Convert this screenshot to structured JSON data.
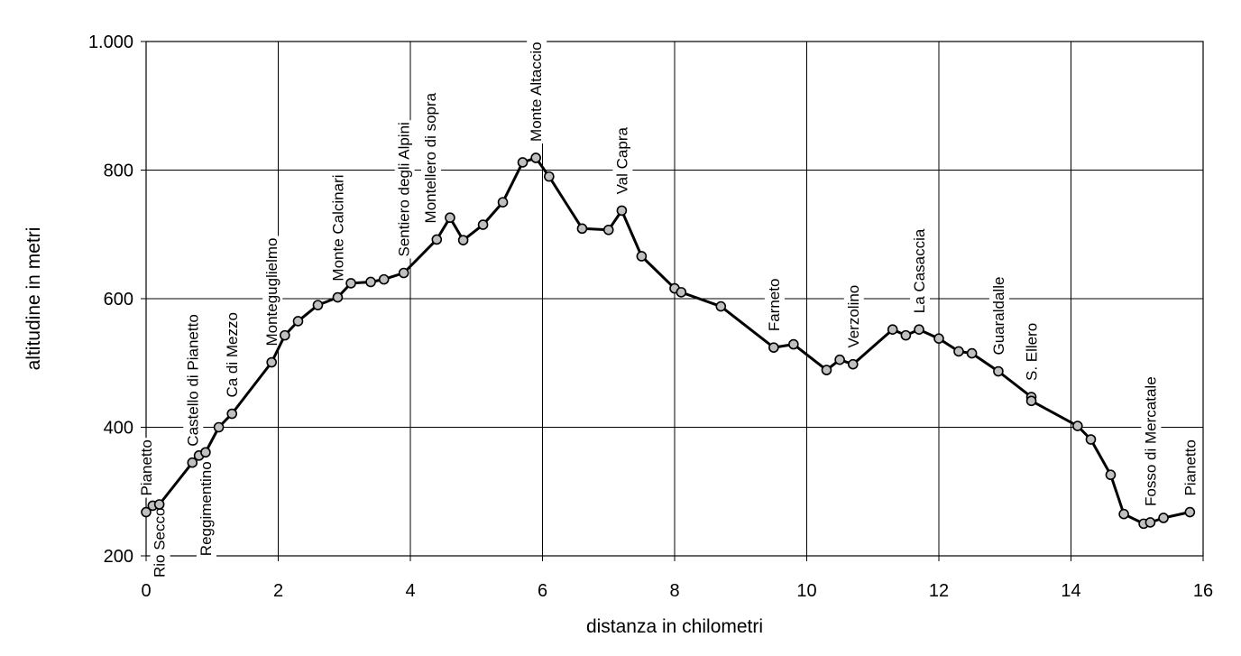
{
  "chart_data": {
    "type": "line",
    "xlabel": "distanza in chilometri",
    "ylabel": "altitudine  in metri",
    "xlim": [
      0,
      16
    ],
    "ylim": [
      200,
      1000
    ],
    "x_ticks": [
      0,
      2,
      4,
      6,
      8,
      10,
      12,
      14,
      16
    ],
    "x_tick_labels": [
      "0",
      "2",
      "4",
      "6",
      "8",
      "10",
      "12",
      "14",
      "16"
    ],
    "y_ticks": [
      200,
      400,
      600,
      800,
      1000
    ],
    "y_tick_labels": [
      "200",
      "400",
      "600",
      "800",
      "1.000"
    ],
    "grid": true,
    "x": [
      0.0,
      0.1,
      0.2,
      0.7,
      0.8,
      0.9,
      1.1,
      1.3,
      1.9,
      2.1,
      2.3,
      2.6,
      2.9,
      3.1,
      3.4,
      3.6,
      3.9,
      4.4,
      4.6,
      4.8,
      5.1,
      5.4,
      5.7,
      5.9,
      6.1,
      6.6,
      7.0,
      7.2,
      7.5,
      8.0,
      8.1,
      8.7,
      9.5,
      9.8,
      10.3,
      10.5,
      10.7,
      11.3,
      11.5,
      11.7,
      12.0,
      12.3,
      12.5,
      12.9,
      13.4,
      13.4,
      14.1,
      14.3,
      14.6,
      14.8,
      15.1,
      15.2,
      15.4,
      15.8
    ],
    "y": [
      268,
      278,
      280,
      345,
      356,
      361,
      400,
      421,
      501,
      543,
      565,
      590,
      602,
      624,
      626,
      630,
      640,
      692,
      726,
      691,
      715,
      750,
      812,
      819,
      790,
      709,
      707,
      737,
      666,
      616,
      610,
      588,
      524,
      529,
      489,
      505,
      498,
      552,
      543,
      552,
      538,
      518,
      515,
      487,
      447,
      441,
      402,
      381,
      326,
      265,
      250,
      252,
      259,
      268
    ],
    "annotations": [
      {
        "text": "Pianetto",
        "x": 0.0,
        "y": 268,
        "position": "above"
      },
      {
        "text": "Rio Secco",
        "x": 0.2,
        "y": 280,
        "position": "below"
      },
      {
        "text": "Castello di Pianetto",
        "x": 0.7,
        "y": 345,
        "position": "above"
      },
      {
        "text": "Reggimentino",
        "x": 0.9,
        "y": 361,
        "position": "below"
      },
      {
        "text": "Ca di Mezzo",
        "x": 1.3,
        "y": 421,
        "position": "above"
      },
      {
        "text": "Monteguglielmo",
        "x": 1.9,
        "y": 501,
        "position": "above"
      },
      {
        "text": "Monte Calcinari",
        "x": 2.9,
        "y": 602,
        "position": "above"
      },
      {
        "text": "Sentiero degli Alpini",
        "x": 3.9,
        "y": 640,
        "position": "above"
      },
      {
        "text": "Montellero di sopra",
        "x": 4.3,
        "y": 692,
        "position": "above"
      },
      {
        "text": "Monte Altaccio",
        "x": 5.9,
        "y": 819,
        "position": "above"
      },
      {
        "text": "Val Capra",
        "x": 7.2,
        "y": 737,
        "position": "above"
      },
      {
        "text": "Farneto",
        "x": 9.5,
        "y": 524,
        "position": "above"
      },
      {
        "text": "Verzolino",
        "x": 10.7,
        "y": 498,
        "position": "above"
      },
      {
        "text": "La Casaccia",
        "x": 11.7,
        "y": 552,
        "position": "above"
      },
      {
        "text": "Guaraldalle",
        "x": 12.9,
        "y": 487,
        "position": "above"
      },
      {
        "text": "S. Ellero",
        "x": 13.4,
        "y": 447,
        "position": "above"
      },
      {
        "text": "Fosso di Mercatale",
        "x": 15.2,
        "y": 252,
        "position": "above"
      },
      {
        "text": "Pianetto",
        "x": 15.8,
        "y": 268,
        "position": "above"
      }
    ]
  }
}
